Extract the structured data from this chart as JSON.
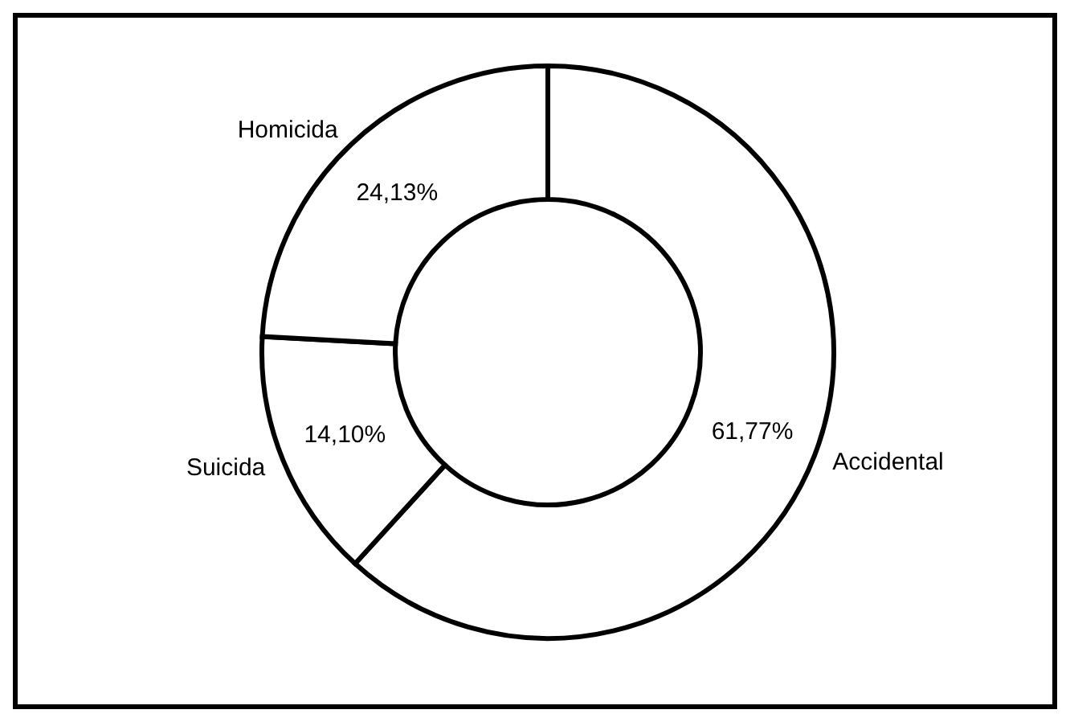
{
  "chart_data": {
    "type": "donut",
    "categories": [
      "Accidental",
      "Suicida",
      "Homicida"
    ],
    "values": [
      61.77,
      14.1,
      24.13
    ],
    "value_labels": [
      "61,77%",
      "14,10%",
      "24,13%"
    ],
    "colors": [
      "#ffffff",
      "#ffffff",
      "#ffffff"
    ]
  }
}
